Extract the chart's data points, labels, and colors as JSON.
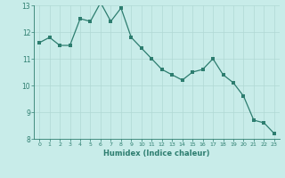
{
  "x": [
    0,
    1,
    2,
    3,
    4,
    5,
    6,
    7,
    8,
    9,
    10,
    11,
    12,
    13,
    14,
    15,
    16,
    17,
    18,
    19,
    20,
    21,
    22,
    23
  ],
  "y": [
    11.6,
    11.8,
    11.5,
    11.5,
    12.5,
    12.4,
    13.1,
    12.4,
    12.9,
    11.8,
    11.4,
    11.0,
    10.6,
    10.4,
    10.2,
    10.5,
    10.6,
    11.0,
    10.4,
    10.1,
    9.6,
    8.7,
    8.6,
    8.2
  ],
  "xlabel": "Humidex (Indice chaleur)",
  "ylim": [
    8,
    13
  ],
  "xlim": [
    -0.5,
    23.5
  ],
  "yticks": [
    8,
    9,
    10,
    11,
    12,
    13
  ],
  "xticks": [
    0,
    1,
    2,
    3,
    4,
    5,
    6,
    7,
    8,
    9,
    10,
    11,
    12,
    13,
    14,
    15,
    16,
    17,
    18,
    19,
    20,
    21,
    22,
    23
  ],
  "line_color": "#2d7d6f",
  "marker_color": "#2d7d6f",
  "bg_color": "#c8ece9",
  "grid_color": "#b0d8d4",
  "text_color": "#2d7d6f"
}
